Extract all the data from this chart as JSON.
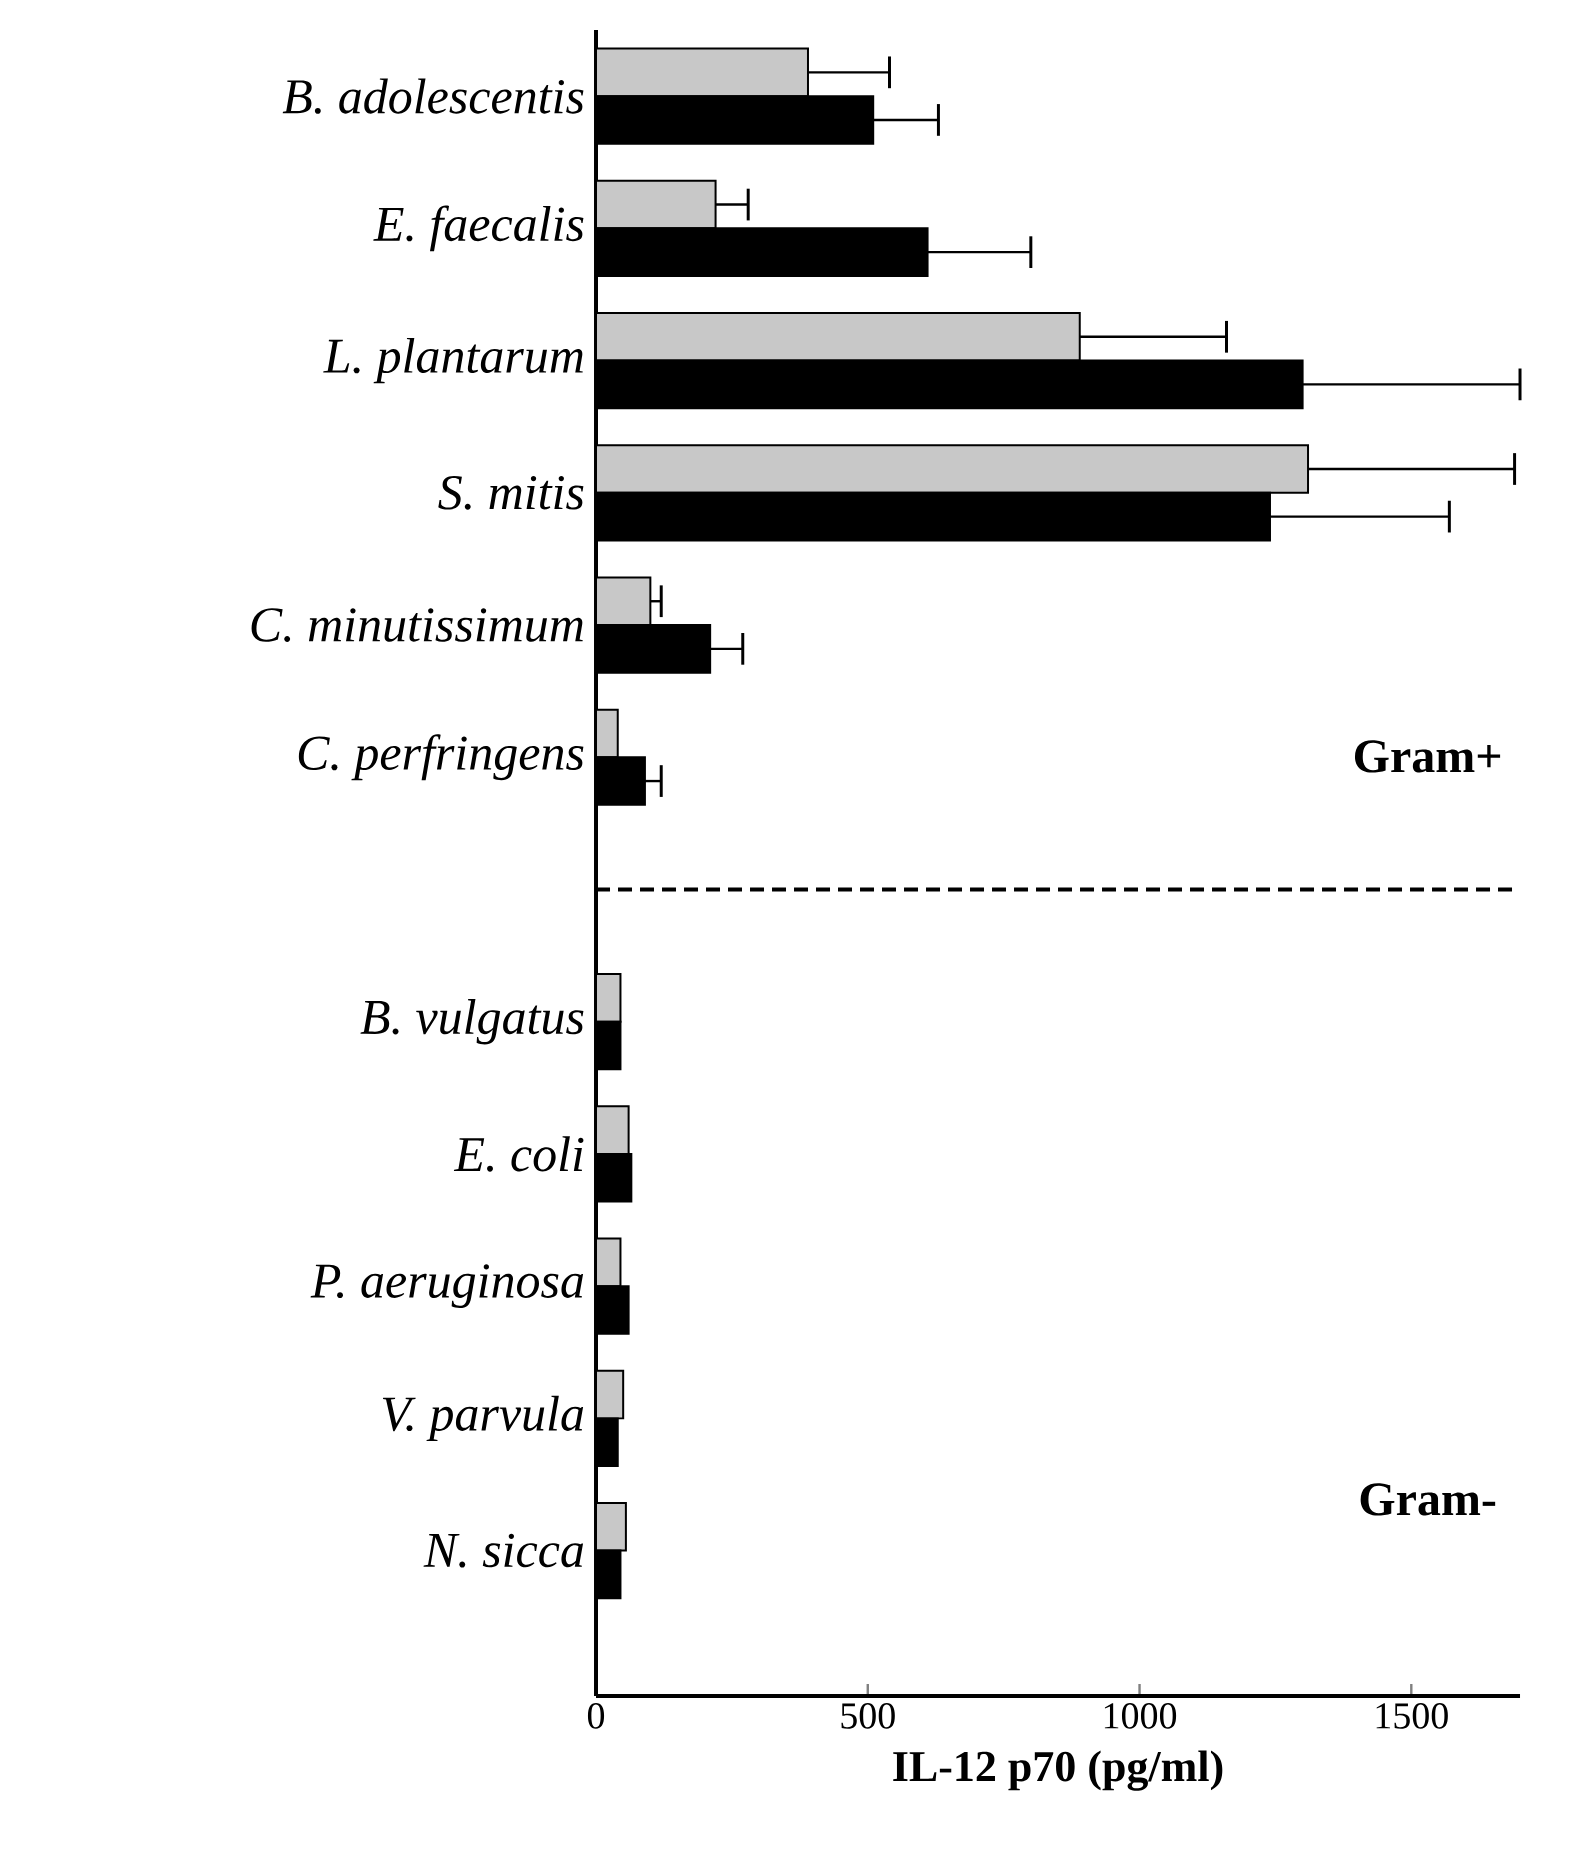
{
  "chart_data": {
    "type": "bar",
    "orientation": "horizontal",
    "xlabel": "IL-12 p70 (pg/ml)",
    "categories": [
      "*B. adolescentis*",
      "*E. faecalis*",
      "*L. plantarum*",
      "*S. mitis*",
      "*C. minutissimum*",
      "*C. perfringens*",
      null,
      "*B. vulgatus*",
      "*E. coli*",
      "*P. aeruginosa*",
      "*V. parvula*",
      "*N. sicca*"
    ],
    "series": [
      {
        "color": "#c8c8c8",
        "values": [
          390,
          220,
          890,
          1310,
          100,
          40,
          null,
          45,
          60,
          45,
          50,
          55
        ],
        "errors": [
          150,
          60,
          270,
          380,
          20,
          null,
          null,
          null,
          null,
          null,
          null,
          null
        ]
      },
      {
        "color": "#000000",
        "values": [
          510,
          610,
          1300,
          1240,
          210,
          90,
          null,
          45,
          65,
          60,
          40,
          45
        ],
        "errors": [
          120,
          190,
          400,
          330,
          60,
          30,
          null,
          null,
          null,
          null,
          null,
          null
        ]
      }
    ],
    "xlim": [
      0,
      1700
    ],
    "xticks": [
      0,
      500,
      1000,
      1500
    ],
    "annotations": [
      "**Gram+**",
      "**Gram-**"
    ]
  }
}
